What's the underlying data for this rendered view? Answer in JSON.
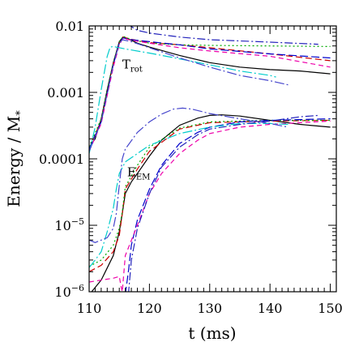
{
  "chart_data": {
    "type": "line",
    "xlabel": "t (ms)",
    "ylabel_main": "Energy / M",
    "ylabel_sub": "*",
    "xlim": [
      110,
      151
    ],
    "ylim": [
      1e-06,
      0.01
    ],
    "yscale": "log",
    "grid": false,
    "legend": "none",
    "x_ticks": [
      "110",
      "120",
      "130",
      "140",
      "150"
    ],
    "y_tick_labels": [
      {
        "v": 1e-06,
        "base": "10",
        "exp": "−6"
      },
      {
        "v": 1e-05,
        "base": "10",
        "exp": "−5"
      },
      {
        "v": 0.0001,
        "base": "0.0001",
        "exp": ""
      },
      {
        "v": 0.001,
        "base": "0.001",
        "exp": ""
      },
      {
        "v": 0.01,
        "base": "0.01",
        "exp": ""
      }
    ],
    "annotations": [
      {
        "main": "T",
        "sub": "rot",
        "x": 115.5,
        "y": 0.0023
      },
      {
        "main": "E",
        "sub": "EM",
        "x": 116.3,
        "y": 5.5e-05
      }
    ],
    "series": [
      {
        "color": "#000000",
        "dash": "",
        "group": "T_rot",
        "points": [
          [
            110,
            0.00015
          ],
          [
            111,
            0.0002
          ],
          [
            112,
            0.0004
          ],
          [
            113,
            0.0011
          ],
          [
            114,
            0.0028
          ],
          [
            115,
            0.0058
          ],
          [
            115.6,
            0.0068
          ],
          [
            116.5,
            0.0064
          ],
          [
            118,
            0.0055
          ],
          [
            120,
            0.0048
          ],
          [
            125,
            0.0036
          ],
          [
            130,
            0.0028
          ],
          [
            135,
            0.0024
          ],
          [
            140,
            0.0022
          ],
          [
            145,
            0.0021
          ],
          [
            150,
            0.0019
          ]
        ]
      },
      {
        "color": "#cc0000",
        "dash": "8,4",
        "group": "T_rot",
        "points": [
          [
            110,
            0.00014
          ],
          [
            112,
            0.00038
          ],
          [
            113,
            0.001
          ],
          [
            114,
            0.0027
          ],
          [
            115,
            0.0055
          ],
          [
            115.6,
            0.0068
          ],
          [
            117,
            0.0063
          ],
          [
            120,
            0.0056
          ],
          [
            125,
            0.0052
          ],
          [
            130,
            0.0047
          ],
          [
            140,
            0.0038
          ],
          [
            150,
            0.003
          ]
        ]
      },
      {
        "color": "#00aa00",
        "dash": "2,3",
        "group": "T_rot",
        "points": [
          [
            110,
            0.00015
          ],
          [
            112,
            0.0004
          ],
          [
            114,
            0.0028
          ],
          [
            115,
            0.0056
          ],
          [
            115.6,
            0.007
          ],
          [
            117,
            0.0062
          ],
          [
            120,
            0.0055
          ],
          [
            125,
            0.0052
          ],
          [
            130,
            0.0051
          ],
          [
            140,
            0.005
          ],
          [
            150,
            0.0049
          ]
        ]
      },
      {
        "color": "#0000cc",
        "dash": "10,4",
        "group": "T_rot",
        "points": [
          [
            110,
            0.00014
          ],
          [
            112,
            0.00036
          ],
          [
            114,
            0.0026
          ],
          [
            115,
            0.0055
          ],
          [
            115.6,
            0.0066
          ],
          [
            117,
            0.0062
          ],
          [
            120,
            0.0058
          ],
          [
            125,
            0.0052
          ],
          [
            130,
            0.0045
          ],
          [
            140,
            0.0038
          ],
          [
            150,
            0.0033
          ]
        ]
      },
      {
        "color": "#ee00aa",
        "dash": "6,4",
        "group": "T_rot",
        "points": [
          [
            110,
            0.00013
          ],
          [
            112,
            0.00034
          ],
          [
            114,
            0.0024
          ],
          [
            115,
            0.0052
          ],
          [
            115.6,
            0.0065
          ],
          [
            117,
            0.0061
          ],
          [
            120,
            0.0055
          ],
          [
            125,
            0.0047
          ],
          [
            130,
            0.0042
          ],
          [
            140,
            0.0035
          ],
          [
            150,
            0.0024
          ]
        ]
      },
      {
        "color": "#00cccc",
        "dash": "12,3,2,3",
        "group": "T_rot",
        "points": [
          [
            110,
            0.00012
          ],
          [
            111,
            0.0003
          ],
          [
            112,
            0.0011
          ],
          [
            113,
            0.0035
          ],
          [
            113.5,
            0.0048
          ],
          [
            114,
            0.0049
          ],
          [
            116,
            0.0045
          ],
          [
            120,
            0.0039
          ],
          [
            125,
            0.0032
          ],
          [
            130,
            0.0026
          ],
          [
            135,
            0.0021
          ],
          [
            140,
            0.0018
          ],
          [
            141,
            0.0017
          ]
        ]
      },
      {
        "color": "#4444cc",
        "dash": "12,3,2,3",
        "group": "T_rot",
        "points": [
          [
            110,
            0.00013
          ],
          [
            112,
            0.00036
          ],
          [
            114,
            0.0026
          ],
          [
            115,
            0.0055
          ],
          [
            115.5,
            0.0062
          ],
          [
            117,
            0.0058
          ],
          [
            120,
            0.0047
          ],
          [
            125,
            0.0033
          ],
          [
            130,
            0.0024
          ],
          [
            135,
            0.0018
          ],
          [
            140,
            0.0015
          ],
          [
            143,
            0.0013
          ]
        ]
      },
      {
        "color": "#2222bb",
        "dash": "10,3,2,3",
        "group": "T_rot",
        "points": [
          [
            116.3,
            0.011
          ],
          [
            117,
            0.0098
          ],
          [
            118,
            0.0086
          ],
          [
            120,
            0.0078
          ],
          [
            125,
            0.0068
          ],
          [
            130,
            0.0062
          ],
          [
            140,
            0.0057
          ],
          [
            148,
            0.0053
          ]
        ]
      },
      {
        "color": "#000000",
        "dash": "",
        "group": "E_EM",
        "points": [
          [
            110,
            9e-07
          ],
          [
            112,
            1.5e-06
          ],
          [
            114,
            3.5e-06
          ],
          [
            115,
            8e-06
          ],
          [
            115.5,
            1.5e-05
          ],
          [
            116,
            3e-05
          ],
          [
            117,
            4.5e-05
          ],
          [
            118,
            6e-05
          ],
          [
            120,
            0.00011
          ],
          [
            122,
            0.00019
          ],
          [
            125,
            0.00032
          ],
          [
            128,
            0.00041
          ],
          [
            130,
            0.00045
          ],
          [
            132,
            0.00046
          ],
          [
            135,
            0.00044
          ],
          [
            140,
            0.00038
          ],
          [
            145,
            0.00033
          ],
          [
            150,
            0.0003
          ]
        ]
      },
      {
        "color": "#cc0000",
        "dash": "8,4",
        "group": "E_EM",
        "points": [
          [
            110,
            2e-06
          ],
          [
            112,
            2.5e-06
          ],
          [
            114,
            4e-06
          ],
          [
            115,
            7e-06
          ],
          [
            115.5,
            1.5e-05
          ],
          [
            116,
            3.5e-05
          ],
          [
            118,
            7e-05
          ],
          [
            120,
            0.00013
          ],
          [
            125,
            0.00028
          ],
          [
            130,
            0.00035
          ],
          [
            135,
            0.00036
          ],
          [
            140,
            0.00037
          ],
          [
            150,
            0.00038
          ]
        ]
      },
      {
        "color": "#00aa00",
        "dash": "2,3",
        "group": "E_EM",
        "points": [
          [
            110,
            2.4e-06
          ],
          [
            112,
            3e-06
          ],
          [
            114,
            5e-06
          ],
          [
            115,
            9e-06
          ],
          [
            115.5,
            1.6e-05
          ],
          [
            116,
            3.8e-05
          ],
          [
            118,
            8e-05
          ],
          [
            120,
            0.00015
          ],
          [
            125,
            0.00029
          ],
          [
            130,
            0.00036
          ],
          [
            135,
            0.00037
          ],
          [
            140,
            0.00038
          ],
          [
            150,
            0.00038
          ]
        ]
      },
      {
        "color": "#0000cc",
        "dash": "10,4",
        "group": "E_EM",
        "points": [
          [
            116,
            9e-07
          ],
          [
            116.5,
            2e-06
          ],
          [
            117,
            5e-06
          ],
          [
            118,
            1.2e-05
          ],
          [
            120,
            3.5e-05
          ],
          [
            122,
            8e-05
          ],
          [
            125,
            0.00017
          ],
          [
            128,
            0.00025
          ],
          [
            130,
            0.0003
          ],
          [
            135,
            0.00036
          ],
          [
            140,
            0.00038
          ],
          [
            150,
            0.0004
          ]
        ]
      },
      {
        "color": "#ee00aa",
        "dash": "6,4",
        "group": "E_EM",
        "points": [
          [
            110,
            1.4e-06
          ],
          [
            112,
            1.5e-06
          ],
          [
            114,
            1.6e-06
          ],
          [
            115,
            1.7e-06
          ],
          [
            115.3,
            1.2e-06
          ],
          [
            115.5,
            1e-06
          ],
          [
            116,
            3.5e-06
          ],
          [
            118,
            1e-05
          ],
          [
            120,
            3e-05
          ],
          [
            122,
            6e-05
          ],
          [
            125,
            0.00012
          ],
          [
            128,
            0.00019
          ],
          [
            130,
            0.00024
          ],
          [
            135,
            0.0003
          ],
          [
            140,
            0.00033
          ],
          [
            145,
            0.00035
          ],
          [
            150,
            0.00037
          ]
        ]
      },
      {
        "color": "#00cccc",
        "dash": "12,3,2,3",
        "group": "E_EM",
        "points": [
          [
            110,
            2.3e-06
          ],
          [
            111,
            3e-06
          ],
          [
            112,
            4e-06
          ],
          [
            113,
            8e-06
          ],
          [
            114,
            1.8e-05
          ],
          [
            114.5,
            3.5e-05
          ],
          [
            115,
            6e-05
          ],
          [
            116,
            9e-05
          ],
          [
            118,
            0.00012
          ],
          [
            120,
            0.00016
          ],
          [
            125,
            0.00024
          ],
          [
            130,
            0.0003
          ],
          [
            135,
            0.00034
          ],
          [
            140,
            0.00034
          ],
          [
            143,
            0.00033
          ]
        ]
      },
      {
        "color": "#4444cc",
        "dash": "12,3,2,3",
        "group": "E_EM",
        "points": [
          [
            110,
            6e-06
          ],
          [
            111,
            5.5e-06
          ],
          [
            113,
            6.5e-06
          ],
          [
            114,
            9e-06
          ],
          [
            114.5,
            1.5e-05
          ],
          [
            115,
            4e-05
          ],
          [
            115.5,
            0.0001
          ],
          [
            116,
            0.00014
          ],
          [
            118,
            0.00025
          ],
          [
            120,
            0.00036
          ],
          [
            122,
            0.00047
          ],
          [
            124,
            0.00056
          ],
          [
            125.5,
            0.00058
          ],
          [
            127,
            0.00056
          ],
          [
            130,
            0.00048
          ],
          [
            135,
            0.0004
          ],
          [
            140,
            0.00034
          ],
          [
            143,
            0.0003
          ]
        ]
      },
      {
        "color": "#2222bb",
        "dash": "10,3,2,3",
        "group": "E_EM",
        "points": [
          [
            116.5,
            9e-07
          ],
          [
            117,
            3e-06
          ],
          [
            118,
            9e-06
          ],
          [
            120,
            3e-05
          ],
          [
            122,
            7.5e-05
          ],
          [
            125,
            0.00015
          ],
          [
            128,
            0.00023
          ],
          [
            130,
            0.00028
          ],
          [
            135,
            0.00033
          ],
          [
            140,
            0.00037
          ],
          [
            145,
            0.00043
          ],
          [
            148,
            0.00045
          ]
        ]
      }
    ]
  }
}
